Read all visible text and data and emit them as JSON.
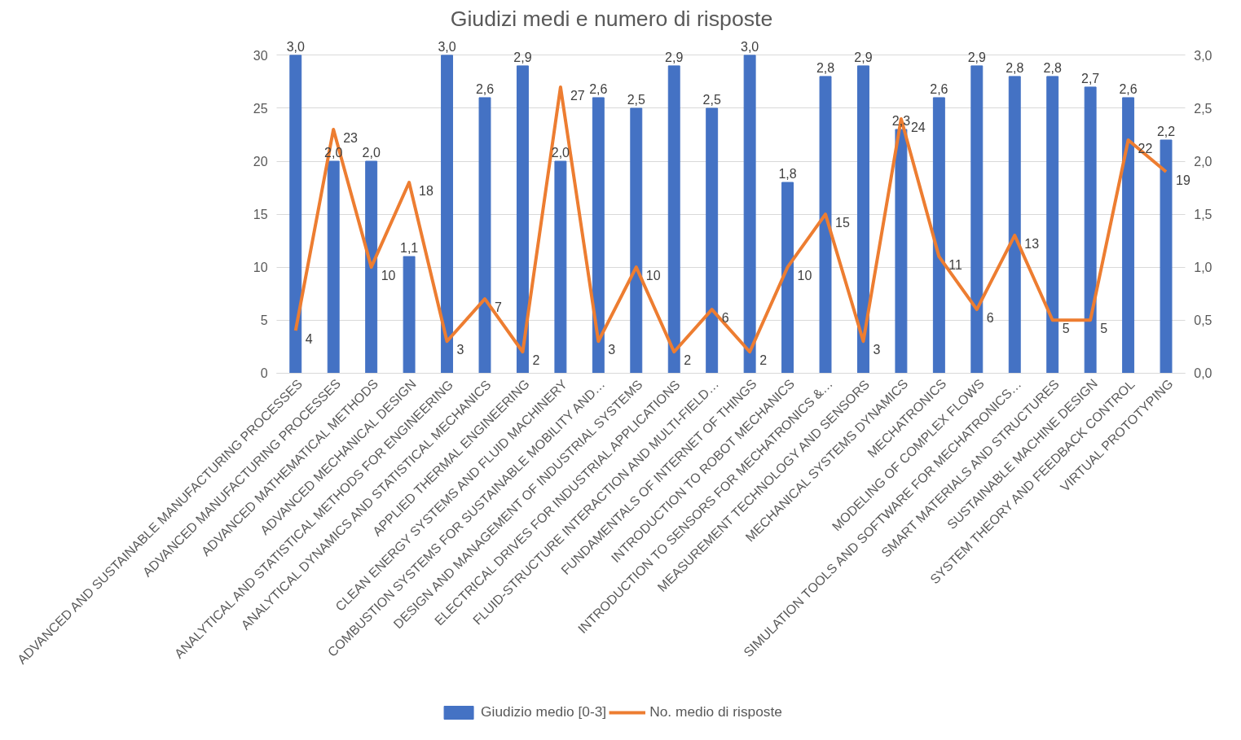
{
  "chart_data": {
    "type": "bar",
    "title": "Giudizi medi e numero di risposte",
    "categories": [
      "ADVANCED AND SUSTAINABLE MANUFACTURING PROCESSES",
      "ADVANCED MANUFACTURING PROCESSES",
      "ADVANCED MATHEMATICAL METHODS",
      "ADVANCED MECHANICAL DESIGN",
      "ANALYTICAL AND STATISTICAL METHODS FOR ENGINEERING",
      "ANALYTICAL DYNAMICS AND STATISTICAL MECHANICS",
      "APPLIED THERMAL ENGINEERING",
      "CLEAN ENERGY SYSTEMS AND FLUID MACHINERY",
      "COMBUSTION SYSTEMS FOR SUSTAINABLE MOBILITY AND…",
      "DESIGN AND MANAGEMENT OF INDUSTRIAL SYSTEMS",
      "ELECTRICAL DRIVES FOR INDUSTRIAL APPLICATIONS",
      "FLUID-STRUCTURE INTERACTION AND MULTI-FIELD…",
      "FUNDAMENTALS OF INTERNET OF THINGS",
      "INTRODUCTION TO ROBOT MECHANICS",
      "INTRODUCTION TO SENSORS FOR MECHATRONICS &…",
      "MEASUREMENT TECHNOLOGY AND SENSORS",
      "MECHANICAL SYSTEMS DYNAMICS",
      "MECHATRONICS",
      "MODELING OF COMPLEX FLOWS",
      "SIMULATION TOOLS AND SOFTWARE FOR MECHATRONICS…",
      "SMART MATERIALS AND STRUCTURES",
      "SUSTAINABLE MACHINE DESIGN",
      "SYSTEM THEORY AND FEEDBACK CONTROL",
      "VIRTUAL PROTOTYPING"
    ],
    "series": [
      {
        "name": "Giudizio medio [0-3]",
        "axis": "y2",
        "color": "#4472c4",
        "values": [
          3.0,
          2.0,
          2.0,
          1.1,
          3.0,
          2.6,
          2.9,
          2.0,
          2.6,
          2.5,
          2.9,
          2.5,
          3.0,
          1.8,
          2.8,
          2.9,
          2.3,
          2.6,
          2.9,
          2.8,
          2.8,
          2.7,
          2.6,
          2.2
        ],
        "value_labels": [
          "3,0",
          "2,0",
          "2,0",
          "1,1",
          "3,0",
          "2,6",
          "2,9",
          "2,0",
          "2,6",
          "2,5",
          "2,9",
          "2,5",
          "3,0",
          "1,8",
          "2,8",
          "2,9",
          "2,3",
          "2,6",
          "2,9",
          "2,8",
          "2,8",
          "2,7",
          "2,6",
          "2,2"
        ]
      },
      {
        "name": "No. medio di risposte",
        "type": "line",
        "color": "#ed7d31",
        "values": [
          4,
          23,
          10,
          18,
          3,
          7,
          2,
          27,
          3,
          10,
          2,
          6,
          2,
          10,
          15,
          3,
          24,
          11,
          6,
          13,
          5,
          5,
          22,
          19
        ],
        "value_labels": [
          "4",
          "23",
          "10",
          "18",
          "3",
          "7",
          "2",
          "27",
          "3",
          "10",
          "2",
          "6",
          "2",
          "10",
          "15",
          "3",
          "24",
          "11",
          "6",
          "13",
          "5",
          "5",
          "22",
          "19"
        ]
      }
    ],
    "ylim": [
      0,
      30
    ],
    "yticks": [
      0,
      5,
      10,
      15,
      20,
      25,
      30
    ],
    "y2lim": [
      0,
      3
    ],
    "y2ticks": [
      {
        "value": 0,
        "label": "0,0"
      },
      {
        "value": 0.5,
        "label": "0,5"
      },
      {
        "value": 1,
        "label": "1,0"
      },
      {
        "value": 1.5,
        "label": "1,5"
      },
      {
        "value": 2,
        "label": "2,0"
      },
      {
        "value": 2.5,
        "label": "2,5"
      },
      {
        "value": 3,
        "label": "3,0"
      }
    ],
    "grid": "y",
    "legend": "bottom",
    "line_style": "solid",
    "marker": "none"
  }
}
